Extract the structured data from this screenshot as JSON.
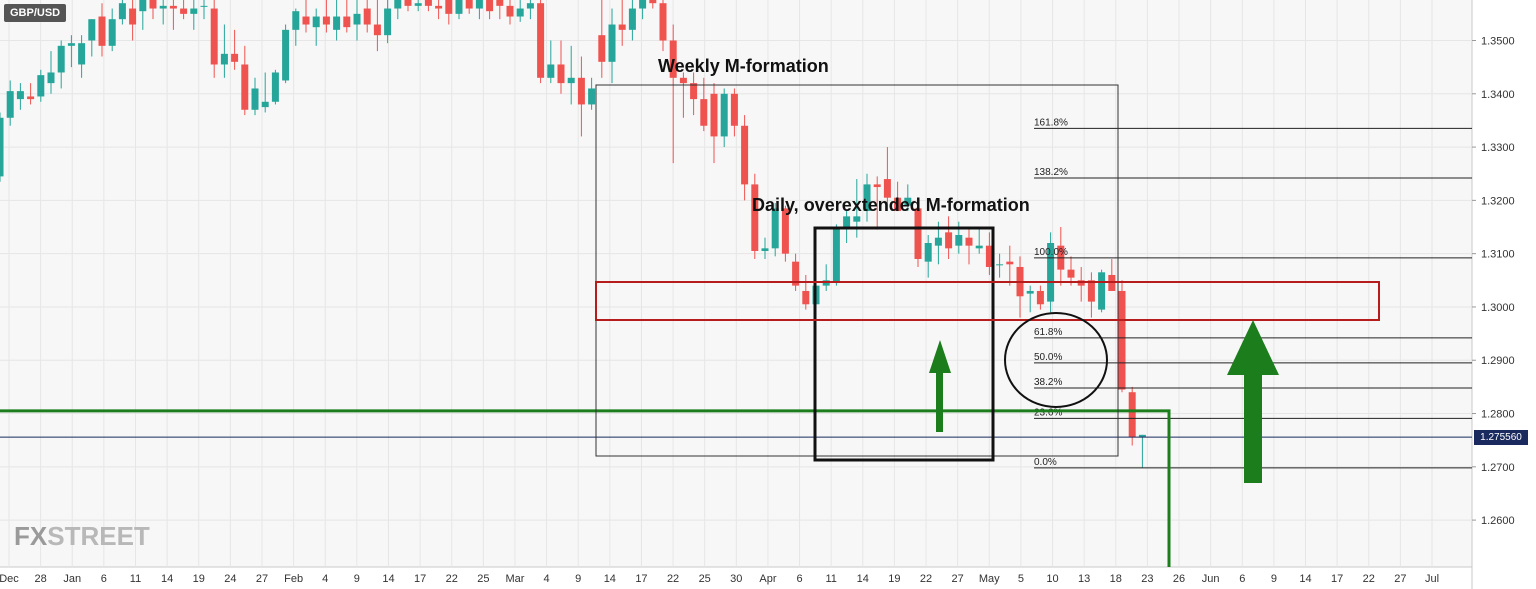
{
  "symbol": "GBP/USD",
  "current_price_label": "1.275560",
  "logo": {
    "part1": "FX",
    "part2": "STREET"
  },
  "colors": {
    "up": "#26a69a",
    "down": "#ef5350",
    "grid": "#e6e6e6",
    "annotation_red": "#b71c1c",
    "annotation_green": "#1b7d1b",
    "price_line": "#1a2a5e"
  },
  "annotations": {
    "weekly_label": "Weekly M-formation",
    "daily_label": "Daily, overextended M-formation"
  },
  "fib_levels": [
    {
      "label": "161.8%",
      "price": 1.3335
    },
    {
      "label": "138.2%",
      "price": 1.3242
    },
    {
      "label": "100.0%",
      "price": 1.3092
    },
    {
      "label": "61.8%",
      "price": 1.2942
    },
    {
      "label": "50.0%",
      "price": 1.2895
    },
    {
      "label": "38.2%",
      "price": 1.2848
    },
    {
      "label": "23.6%",
      "price": 1.2791
    },
    {
      "label": "0.0%",
      "price": 1.2698
    }
  ],
  "chart_data": {
    "type": "candlestick",
    "title": "",
    "y_axis": {
      "ticks": [
        "1.2600",
        "1.2700",
        "1.2800",
        "1.2900",
        "1.3000",
        "1.3100",
        "1.3200",
        "1.3300",
        "1.3400",
        "1.3500"
      ],
      "range": [
        1.2512,
        1.3576
      ],
      "position": "right"
    },
    "x_axis": {
      "ticks": [
        "Dec",
        "28",
        "Jan",
        "6",
        "11",
        "14",
        "19",
        "24",
        "27",
        "Feb",
        "4",
        "9",
        "14",
        "17",
        "22",
        "25",
        "Mar",
        "4",
        "9",
        "14",
        "17",
        "22",
        "25",
        "30",
        "Apr",
        "6",
        "11",
        "14",
        "19",
        "22",
        "27",
        "May",
        "5",
        "10",
        "13",
        "18",
        "23",
        "26",
        "Jun",
        "6",
        "9",
        "14",
        "17",
        "22",
        "27",
        "Jul"
      ]
    },
    "grid": true,
    "horizontal_lines": [
      {
        "name": "last price",
        "price": 1.27556
      },
      {
        "name": "support",
        "price": 1.2805
      }
    ],
    "candles": [
      {
        "o": 1.3245,
        "h": 1.3365,
        "l": 1.3235,
        "c": 1.3355
      },
      {
        "o": 1.3355,
        "h": 1.3425,
        "l": 1.334,
        "c": 1.3405
      },
      {
        "o": 1.339,
        "h": 1.342,
        "l": 1.337,
        "c": 1.3405
      },
      {
        "o": 1.3395,
        "h": 1.342,
        "l": 1.338,
        "c": 1.339
      },
      {
        "o": 1.3395,
        "h": 1.3445,
        "l": 1.3385,
        "c": 1.3435
      },
      {
        "o": 1.342,
        "h": 1.348,
        "l": 1.34,
        "c": 1.344
      },
      {
        "o": 1.344,
        "h": 1.35,
        "l": 1.341,
        "c": 1.349
      },
      {
        "o": 1.349,
        "h": 1.351,
        "l": 1.345,
        "c": 1.3495
      },
      {
        "o": 1.3455,
        "h": 1.351,
        "l": 1.343,
        "c": 1.3495
      },
      {
        "o": 1.35,
        "h": 1.354,
        "l": 1.347,
        "c": 1.354
      },
      {
        "o": 1.3545,
        "h": 1.357,
        "l": 1.347,
        "c": 1.349
      },
      {
        "o": 1.349,
        "h": 1.356,
        "l": 1.348,
        "c": 1.354
      },
      {
        "o": 1.354,
        "h": 1.3576,
        "l": 1.353,
        "c": 1.357
      },
      {
        "o": 1.356,
        "h": 1.3576,
        "l": 1.35,
        "c": 1.353
      },
      {
        "o": 1.3555,
        "h": 1.3576,
        "l": 1.352,
        "c": 1.3576
      },
      {
        "o": 1.3576,
        "h": 1.3576,
        "l": 1.354,
        "c": 1.356
      },
      {
        "o": 1.356,
        "h": 1.3576,
        "l": 1.353,
        "c": 1.3565
      },
      {
        "o": 1.3565,
        "h": 1.3576,
        "l": 1.352,
        "c": 1.356
      },
      {
        "o": 1.356,
        "h": 1.3576,
        "l": 1.354,
        "c": 1.355
      },
      {
        "o": 1.355,
        "h": 1.3576,
        "l": 1.352,
        "c": 1.356
      },
      {
        "o": 1.3565,
        "h": 1.3576,
        "l": 1.354,
        "c": 1.3565
      },
      {
        "o": 1.356,
        "h": 1.3576,
        "l": 1.343,
        "c": 1.3455
      },
      {
        "o": 1.3455,
        "h": 1.353,
        "l": 1.343,
        "c": 1.3475
      },
      {
        "o": 1.3475,
        "h": 1.352,
        "l": 1.3445,
        "c": 1.346
      },
      {
        "o": 1.3455,
        "h": 1.349,
        "l": 1.336,
        "c": 1.337
      },
      {
        "o": 1.337,
        "h": 1.343,
        "l": 1.336,
        "c": 1.341
      },
      {
        "o": 1.3375,
        "h": 1.344,
        "l": 1.3365,
        "c": 1.3385
      },
      {
        "o": 1.3385,
        "h": 1.3445,
        "l": 1.338,
        "c": 1.344
      },
      {
        "o": 1.3425,
        "h": 1.353,
        "l": 1.342,
        "c": 1.352
      },
      {
        "o": 1.352,
        "h": 1.356,
        "l": 1.349,
        "c": 1.3555
      },
      {
        "o": 1.3545,
        "h": 1.3576,
        "l": 1.3515,
        "c": 1.353
      },
      {
        "o": 1.3525,
        "h": 1.356,
        "l": 1.349,
        "c": 1.3545
      },
      {
        "o": 1.3545,
        "h": 1.3576,
        "l": 1.3515,
        "c": 1.353
      },
      {
        "o": 1.352,
        "h": 1.3576,
        "l": 1.35,
        "c": 1.3545
      },
      {
        "o": 1.3545,
        "h": 1.3576,
        "l": 1.3515,
        "c": 1.3525
      },
      {
        "o": 1.353,
        "h": 1.3576,
        "l": 1.35,
        "c": 1.355
      },
      {
        "o": 1.356,
        "h": 1.3576,
        "l": 1.3515,
        "c": 1.353
      },
      {
        "o": 1.353,
        "h": 1.3576,
        "l": 1.348,
        "c": 1.351
      },
      {
        "o": 1.351,
        "h": 1.3576,
        "l": 1.3495,
        "c": 1.356
      },
      {
        "o": 1.356,
        "h": 1.3576,
        "l": 1.354,
        "c": 1.3576
      },
      {
        "o": 1.3576,
        "h": 1.3576,
        "l": 1.3555,
        "c": 1.3565
      },
      {
        "o": 1.3565,
        "h": 1.3576,
        "l": 1.3555,
        "c": 1.357
      },
      {
        "o": 1.3576,
        "h": 1.3576,
        "l": 1.3555,
        "c": 1.3565
      },
      {
        "o": 1.3565,
        "h": 1.3576,
        "l": 1.354,
        "c": 1.356
      },
      {
        "o": 1.3576,
        "h": 1.3576,
        "l": 1.353,
        "c": 1.355
      },
      {
        "o": 1.355,
        "h": 1.3576,
        "l": 1.354,
        "c": 1.3576
      },
      {
        "o": 1.3576,
        "h": 1.3576,
        "l": 1.355,
        "c": 1.356
      },
      {
        "o": 1.356,
        "h": 1.3576,
        "l": 1.354,
        "c": 1.3576
      },
      {
        "o": 1.3576,
        "h": 1.3576,
        "l": 1.354,
        "c": 1.3555
      },
      {
        "o": 1.3576,
        "h": 1.3576,
        "l": 1.354,
        "c": 1.3565
      },
      {
        "o": 1.3565,
        "h": 1.3576,
        "l": 1.353,
        "c": 1.3545
      },
      {
        "o": 1.3545,
        "h": 1.3576,
        "l": 1.3535,
        "c": 1.356
      },
      {
        "o": 1.356,
        "h": 1.3576,
        "l": 1.354,
        "c": 1.357
      },
      {
        "o": 1.357,
        "h": 1.3576,
        "l": 1.342,
        "c": 1.343
      },
      {
        "o": 1.343,
        "h": 1.35,
        "l": 1.342,
        "c": 1.3455
      },
      {
        "o": 1.3455,
        "h": 1.35,
        "l": 1.34,
        "c": 1.342
      },
      {
        "o": 1.342,
        "h": 1.349,
        "l": 1.338,
        "c": 1.343
      },
      {
        "o": 1.343,
        "h": 1.347,
        "l": 1.332,
        "c": 1.338
      },
      {
        "o": 1.338,
        "h": 1.343,
        "l": 1.337,
        "c": 1.341
      },
      {
        "o": 1.351,
        "h": 1.3576,
        "l": 1.343,
        "c": 1.346
      },
      {
        "o": 1.346,
        "h": 1.356,
        "l": 1.342,
        "c": 1.353
      },
      {
        "o": 1.353,
        "h": 1.3576,
        "l": 1.349,
        "c": 1.352
      },
      {
        "o": 1.352,
        "h": 1.3576,
        "l": 1.35,
        "c": 1.356
      },
      {
        "o": 1.356,
        "h": 1.3576,
        "l": 1.354,
        "c": 1.3576
      },
      {
        "o": 1.3576,
        "h": 1.3576,
        "l": 1.356,
        "c": 1.357
      },
      {
        "o": 1.357,
        "h": 1.3576,
        "l": 1.348,
        "c": 1.35
      },
      {
        "o": 1.35,
        "h": 1.353,
        "l": 1.327,
        "c": 1.343
      },
      {
        "o": 1.343,
        "h": 1.344,
        "l": 1.3355,
        "c": 1.342
      },
      {
        "o": 1.342,
        "h": 1.344,
        "l": 1.336,
        "c": 1.339
      },
      {
        "o": 1.339,
        "h": 1.343,
        "l": 1.333,
        "c": 1.334
      },
      {
        "o": 1.34,
        "h": 1.342,
        "l": 1.327,
        "c": 1.332
      },
      {
        "o": 1.332,
        "h": 1.341,
        "l": 1.33,
        "c": 1.34
      },
      {
        "o": 1.34,
        "h": 1.341,
        "l": 1.332,
        "c": 1.334
      },
      {
        "o": 1.334,
        "h": 1.336,
        "l": 1.32,
        "c": 1.323
      },
      {
        "o": 1.323,
        "h": 1.325,
        "l": 1.309,
        "c": 1.3105
      },
      {
        "o": 1.3105,
        "h": 1.313,
        "l": 1.309,
        "c": 1.311
      },
      {
        "o": 1.311,
        "h": 1.3195,
        "l": 1.3095,
        "c": 1.3185
      },
      {
        "o": 1.3185,
        "h": 1.319,
        "l": 1.3085,
        "c": 1.31
      },
      {
        "o": 1.3085,
        "h": 1.31,
        "l": 1.303,
        "c": 1.304
      },
      {
        "o": 1.303,
        "h": 1.306,
        "l": 1.2995,
        "c": 1.3005
      },
      {
        "o": 1.3005,
        "h": 1.305,
        "l": 1.2995,
        "c": 1.304
      },
      {
        "o": 1.304,
        "h": 1.308,
        "l": 1.303,
        "c": 1.305
      },
      {
        "o": 1.3045,
        "h": 1.3155,
        "l": 1.304,
        "c": 1.315
      },
      {
        "o": 1.315,
        "h": 1.318,
        "l": 1.312,
        "c": 1.317
      },
      {
        "o": 1.316,
        "h": 1.324,
        "l": 1.313,
        "c": 1.317
      },
      {
        "o": 1.318,
        "h": 1.325,
        "l": 1.316,
        "c": 1.323
      },
      {
        "o": 1.323,
        "h": 1.3245,
        "l": 1.3145,
        "c": 1.3225
      },
      {
        "o": 1.324,
        "h": 1.33,
        "l": 1.318,
        "c": 1.3205
      },
      {
        "o": 1.3205,
        "h": 1.3235,
        "l": 1.318,
        "c": 1.318
      },
      {
        "o": 1.319,
        "h": 1.323,
        "l": 1.318,
        "c": 1.3205
      },
      {
        "o": 1.3185,
        "h": 1.3195,
        "l": 1.3075,
        "c": 1.309
      },
      {
        "o": 1.3085,
        "h": 1.3135,
        "l": 1.3055,
        "c": 1.312
      },
      {
        "o": 1.3115,
        "h": 1.316,
        "l": 1.308,
        "c": 1.313
      },
      {
        "o": 1.314,
        "h": 1.317,
        "l": 1.309,
        "c": 1.311
      },
      {
        "o": 1.3115,
        "h": 1.316,
        "l": 1.31,
        "c": 1.3135
      },
      {
        "o": 1.313,
        "h": 1.315,
        "l": 1.308,
        "c": 1.3115
      },
      {
        "o": 1.311,
        "h": 1.315,
        "l": 1.31,
        "c": 1.3115
      },
      {
        "o": 1.3115,
        "h": 1.314,
        "l": 1.306,
        "c": 1.3075
      },
      {
        "o": 1.308,
        "h": 1.31,
        "l": 1.3055,
        "c": 1.308
      },
      {
        "o": 1.3085,
        "h": 1.3115,
        "l": 1.304,
        "c": 1.308
      },
      {
        "o": 1.3075,
        "h": 1.3095,
        "l": 1.298,
        "c": 1.302
      },
      {
        "o": 1.3025,
        "h": 1.304,
        "l": 1.299,
        "c": 1.303
      },
      {
        "o": 1.303,
        "h": 1.304,
        "l": 1.2995,
        "c": 1.3005
      },
      {
        "o": 1.301,
        "h": 1.314,
        "l": 1.299,
        "c": 1.312
      },
      {
        "o": 1.3115,
        "h": 1.315,
        "l": 1.304,
        "c": 1.307
      },
      {
        "o": 1.307,
        "h": 1.3095,
        "l": 1.304,
        "c": 1.3055
      },
      {
        "o": 1.305,
        "h": 1.3075,
        "l": 1.301,
        "c": 1.304
      },
      {
        "o": 1.305,
        "h": 1.3065,
        "l": 1.298,
        "c": 1.301
      },
      {
        "o": 1.2995,
        "h": 1.307,
        "l": 1.299,
        "c": 1.3065
      },
      {
        "o": 1.306,
        "h": 1.309,
        "l": 1.303,
        "c": 1.303
      },
      {
        "o": 1.303,
        "h": 1.305,
        "l": 1.284,
        "c": 1.2845
      },
      {
        "o": 1.284,
        "h": 1.285,
        "l": 1.274,
        "c": 1.2755
      },
      {
        "o": 1.2755,
        "h": 1.276,
        "l": 1.2698,
        "c": 1.276
      }
    ]
  }
}
